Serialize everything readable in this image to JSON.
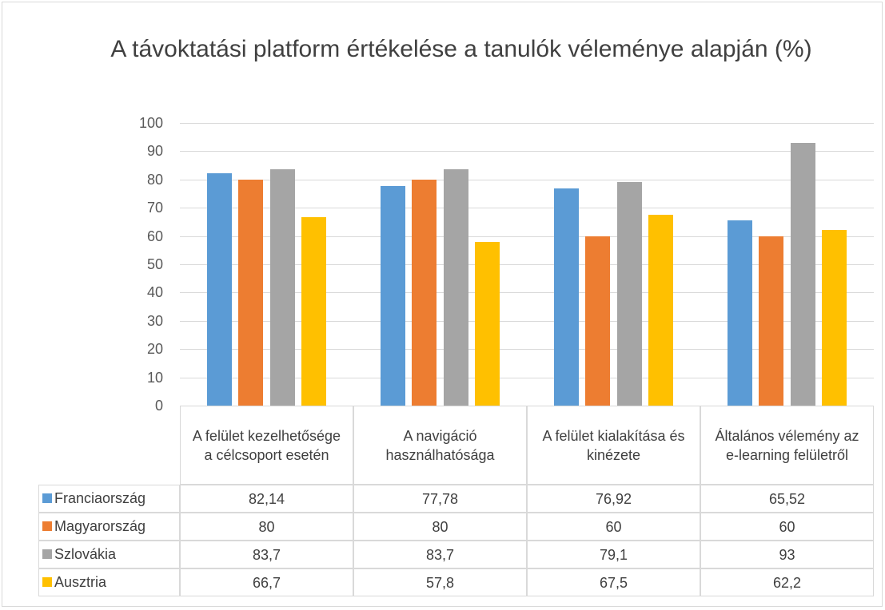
{
  "chart_data": {
    "type": "bar",
    "title": "A távoktatási platform értékelése a tanulók véleménye alapján (%)",
    "categories": [
      "A felület kezelhetősége a célcsoport esetén",
      "A navigáció használhatósága",
      "A felület kialakítása és kinézete",
      "Általános vélemény az e-learning felületről"
    ],
    "series": [
      {
        "name": "Franciaország",
        "color": "#5b9bd5",
        "values": [
          82.14,
          77.78,
          76.92,
          65.52
        ],
        "value_labels": [
          "82,14",
          "77,78",
          "76,92",
          "65,52"
        ]
      },
      {
        "name": "Magyarország",
        "color": "#ed7d31",
        "values": [
          80,
          80,
          60,
          60
        ]
      },
      {
        "name": "Szlovákia",
        "color": "#a5a5a5",
        "values": [
          83.7,
          83.7,
          79.1,
          93
        ],
        "value_labels": [
          "83,7",
          "83,7",
          "79,1",
          "93"
        ]
      },
      {
        "name": "Ausztria",
        "color": "#ffc000",
        "values": [
          66.7,
          57.8,
          67.5,
          62.2
        ],
        "value_labels": [
          "66,7",
          "57,8",
          "67,5",
          "62,2"
        ]
      }
    ],
    "ylim": [
      0,
      100
    ],
    "yticks": [
      0,
      10,
      20,
      30,
      40,
      50,
      60,
      70,
      80,
      90,
      100
    ],
    "grid": true
  }
}
